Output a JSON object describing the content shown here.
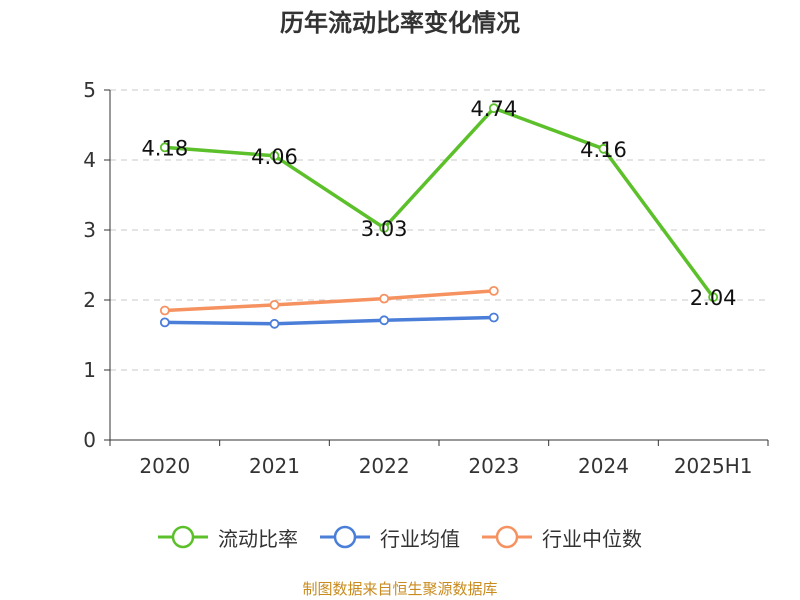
{
  "chart_data": {
    "type": "line",
    "title": "历年流动比率变化情况",
    "categories": [
      "2020",
      "2021",
      "2022",
      "2023",
      "2024",
      "2025H1"
    ],
    "ylim": [
      0,
      5
    ],
    "yticks": [
      0,
      1,
      2,
      3,
      4,
      5
    ],
    "grid": true,
    "legend_position": "bottom",
    "series": [
      {
        "name": "流动比率",
        "color": "#5cc02b",
        "values": [
          4.18,
          4.06,
          3.03,
          4.74,
          4.16,
          2.04
        ],
        "labels": [
          "4.18",
          "4.06",
          "3.03",
          "4.74",
          "4.16",
          "2.04"
        ]
      },
      {
        "name": "行业均值",
        "color": "#4a7ed9",
        "values": [
          1.68,
          1.66,
          1.71,
          1.75,
          null,
          null
        ]
      },
      {
        "name": "行业中位数",
        "color": "#f59260",
        "values": [
          1.85,
          1.93,
          2.02,
          2.13,
          null,
          null
        ]
      }
    ]
  },
  "source_note": "制图数据来自恒生聚源数据库"
}
